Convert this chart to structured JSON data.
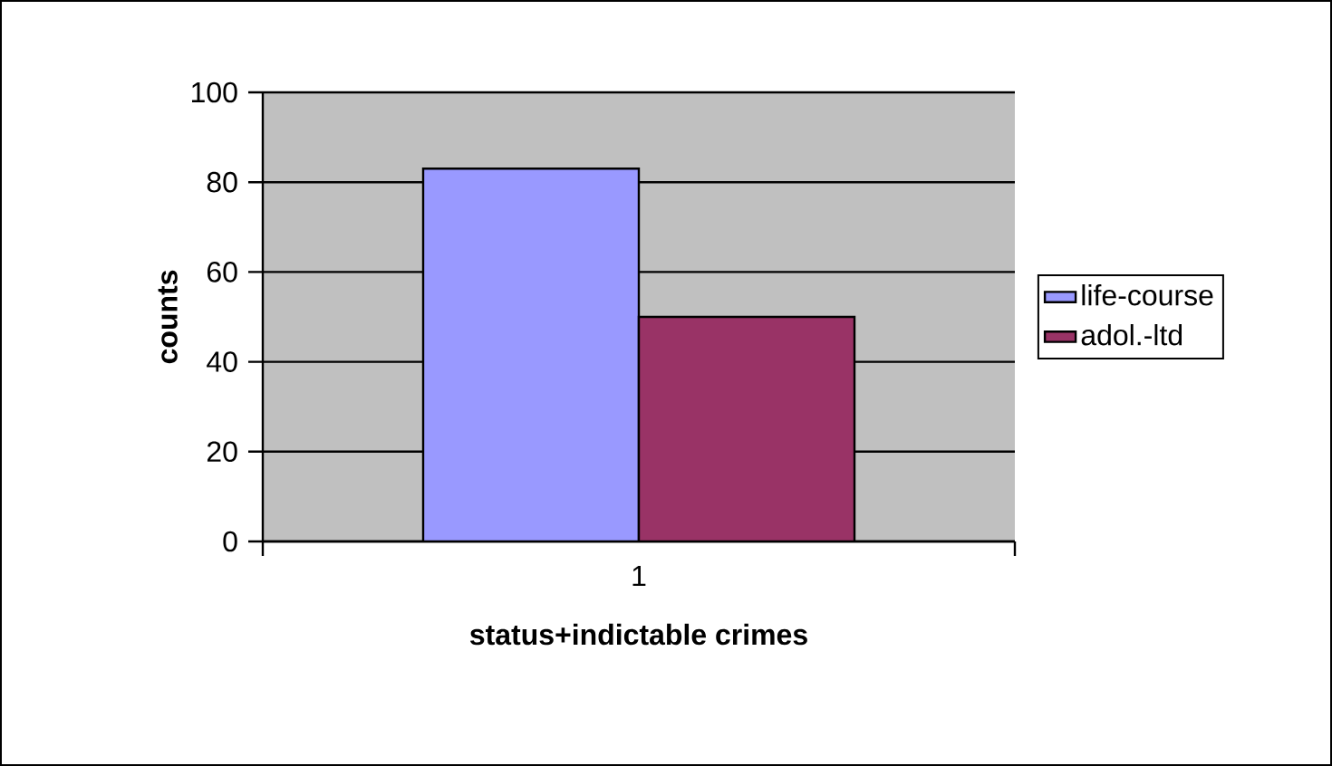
{
  "chart_data": {
    "type": "bar",
    "xlabel": "status+indictable crimes",
    "ylabel": "counts",
    "categories": [
      "1"
    ],
    "series": [
      {
        "name": "life-course",
        "color": "#9999ff",
        "values": [
          83
        ]
      },
      {
        "name": "adol.-ltd",
        "color": "#993366",
        "values": [
          50
        ]
      }
    ],
    "ylim": [
      0,
      100
    ],
    "yticks": [
      0,
      20,
      40,
      60,
      80,
      100
    ],
    "grid": "y",
    "legend": "right"
  }
}
